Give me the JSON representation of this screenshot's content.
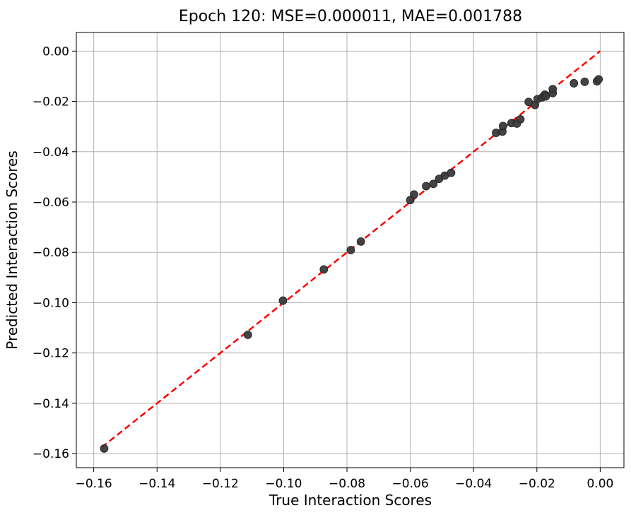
{
  "chart_data": {
    "type": "scatter",
    "title": "Epoch 120: MSE=0.000011, MAE=0.001788",
    "xlabel": "True Interaction Scores",
    "ylabel": "Predicted Interaction Scores",
    "xlim": [
      -0.1655,
      0.0075
    ],
    "ylim": [
      -0.1656,
      0.0074
    ],
    "xticks": [
      -0.16,
      -0.14,
      -0.12,
      -0.1,
      -0.08,
      -0.06,
      -0.04,
      -0.02,
      0.0
    ],
    "xtick_labels": [
      "−0.16",
      "−0.14",
      "−0.12",
      "−0.10",
      "−0.08",
      "−0.06",
      "−0.04",
      "−0.02",
      "0.00"
    ],
    "yticks": [
      0.0,
      -0.02,
      -0.04,
      -0.06,
      -0.08,
      -0.1,
      -0.12,
      -0.14,
      -0.16
    ],
    "ytick_labels": [
      "0.00",
      "−0.02",
      "−0.04",
      "−0.06",
      "−0.08",
      "−0.10",
      "−0.12",
      "−0.14",
      "−0.16"
    ],
    "grid": true,
    "points": [
      {
        "x": -0.1567,
        "y": -0.158
      },
      {
        "x": -0.1113,
        "y": -0.1128
      },
      {
        "x": -0.1002,
        "y": -0.0992
      },
      {
        "x": -0.0873,
        "y": -0.0868
      },
      {
        "x": -0.0788,
        "y": -0.0791
      },
      {
        "x": -0.0756,
        "y": -0.0757
      },
      {
        "x": -0.06,
        "y": -0.0592
      },
      {
        "x": -0.0588,
        "y": -0.057
      },
      {
        "x": -0.055,
        "y": -0.0537
      },
      {
        "x": -0.0527,
        "y": -0.0528
      },
      {
        "x": -0.0509,
        "y": -0.0508
      },
      {
        "x": -0.0491,
        "y": -0.0495
      },
      {
        "x": -0.0471,
        "y": -0.0484
      },
      {
        "x": -0.0329,
        "y": -0.0325
      },
      {
        "x": -0.0309,
        "y": -0.032
      },
      {
        "x": -0.0307,
        "y": -0.0298
      },
      {
        "x": -0.028,
        "y": -0.0286
      },
      {
        "x": -0.0263,
        "y": -0.0288
      },
      {
        "x": -0.0252,
        "y": -0.0271
      },
      {
        "x": -0.0226,
        "y": -0.0202
      },
      {
        "x": -0.0206,
        "y": -0.0214
      },
      {
        "x": -0.0198,
        "y": -0.0191
      },
      {
        "x": -0.0183,
        "y": -0.0184
      },
      {
        "x": -0.0175,
        "y": -0.0173
      },
      {
        "x": -0.0172,
        "y": -0.018
      },
      {
        "x": -0.015,
        "y": -0.0167
      },
      {
        "x": -0.015,
        "y": -0.0151
      },
      {
        "x": -0.0083,
        "y": -0.0128
      },
      {
        "x": -0.0049,
        "y": -0.0122
      },
      {
        "x": -0.001,
        "y": -0.012
      },
      {
        "x": -0.0005,
        "y": -0.0112
      }
    ],
    "reference_line": {
      "x": [
        -0.1575,
        0.0
      ],
      "y": [
        -0.1575,
        0.0
      ],
      "style": "dashed"
    },
    "colors": {
      "points": "#3a3a3a",
      "reference_line": "#ff0000",
      "grid": "#b0b0b0"
    }
  }
}
